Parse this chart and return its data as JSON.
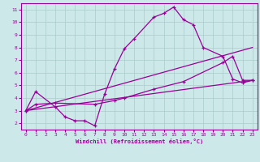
{
  "line1_x": [
    0,
    1,
    3,
    4,
    5,
    6,
    7,
    8,
    9,
    10,
    11,
    13,
    14,
    15,
    16,
    17,
    18,
    20,
    21,
    22,
    23
  ],
  "line1_y": [
    3.0,
    4.5,
    3.3,
    2.5,
    2.2,
    2.2,
    1.8,
    4.3,
    6.3,
    7.9,
    8.7,
    10.4,
    10.7,
    11.2,
    10.2,
    9.8,
    8.0,
    7.3,
    5.5,
    5.2,
    5.4
  ],
  "line2_x": [
    0,
    23
  ],
  "line2_y": [
    3.0,
    8.0
  ],
  "line3_x": [
    0,
    23
  ],
  "line3_y": [
    3.0,
    5.4
  ],
  "line4_x": [
    0,
    1,
    3,
    7,
    9,
    10,
    13,
    16,
    20,
    21,
    22,
    23
  ],
  "line4_y": [
    3.0,
    3.5,
    3.6,
    3.5,
    3.8,
    4.0,
    4.7,
    5.3,
    6.8,
    7.3,
    5.4,
    5.4
  ],
  "color": "#990099",
  "bg_color": "#cce8e8",
  "grid_color": "#aacccc",
  "xlabel": "Windchill (Refroidissement éolien,°C)",
  "ylim": [
    1.5,
    11.5
  ],
  "xlim": [
    -0.5,
    23.5
  ],
  "yticks": [
    2,
    3,
    4,
    5,
    6,
    7,
    8,
    9,
    10,
    11
  ],
  "xticks": [
    0,
    1,
    2,
    3,
    4,
    5,
    6,
    7,
    8,
    9,
    10,
    11,
    12,
    13,
    14,
    15,
    16,
    17,
    18,
    19,
    20,
    21,
    22,
    23
  ],
  "marker": "+"
}
